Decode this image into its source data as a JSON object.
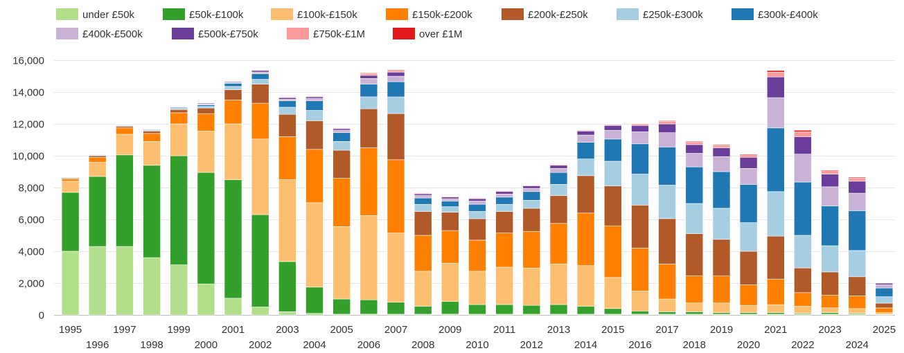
{
  "chart_data": {
    "type": "bar",
    "stacked": true,
    "title": "",
    "xlabel": "",
    "ylabel": "",
    "ylim": [
      0,
      16000
    ],
    "yticks": [
      0,
      2000,
      4000,
      6000,
      8000,
      10000,
      12000,
      14000,
      16000
    ],
    "ytick_labels": [
      "0",
      "2,000",
      "4,000",
      "6,000",
      "8,000",
      "10,000",
      "12,000",
      "14,000",
      "16,000"
    ],
    "grid": true,
    "legend_position": "top-left",
    "categories": [
      "1995",
      "1996",
      "1997",
      "1998",
      "1999",
      "2000",
      "2001",
      "2002",
      "2003",
      "2004",
      "2005",
      "2006",
      "2007",
      "2008",
      "2009",
      "2010",
      "2011",
      "2012",
      "2013",
      "2014",
      "2015",
      "2016",
      "2017",
      "2018",
      "2019",
      "2020",
      "2021",
      "2022",
      "2023",
      "2024",
      "2025"
    ],
    "series": [
      {
        "name": "under £50k",
        "color": "#b2df8a",
        "values": [
          4000,
          4300,
          4300,
          3600,
          3150,
          1950,
          1050,
          500,
          200,
          100,
          50,
          50,
          50,
          50,
          50,
          50,
          50,
          50,
          50,
          50,
          50,
          50,
          50,
          50,
          50,
          50,
          50,
          50,
          50,
          50,
          20
        ]
      },
      {
        "name": "£50k-£100k",
        "color": "#33a02c",
        "values": [
          3700,
          4400,
          5750,
          5800,
          6850,
          7000,
          7450,
          5800,
          3150,
          1650,
          950,
          900,
          750,
          500,
          800,
          600,
          600,
          550,
          600,
          500,
          350,
          200,
          150,
          150,
          100,
          100,
          100,
          50,
          100,
          50,
          20
        ]
      },
      {
        "name": "£100k-£150k",
        "color": "#fdbf6f",
        "values": [
          700,
          900,
          1300,
          1500,
          2000,
          2600,
          3500,
          4750,
          5150,
          5300,
          4550,
          5300,
          4350,
          2200,
          2400,
          2100,
          2350,
          2350,
          2550,
          2550,
          1950,
          1250,
          800,
          550,
          600,
          450,
          500,
          450,
          300,
          300,
          100
        ]
      },
      {
        "name": "£150k-£200k",
        "color": "#ff7f00",
        "values": [
          150,
          300,
          400,
          500,
          700,
          1100,
          1500,
          2250,
          2700,
          3350,
          3050,
          4250,
          4600,
          2250,
          2050,
          1950,
          2150,
          2300,
          2550,
          3300,
          3250,
          2700,
          2200,
          1700,
          1700,
          1300,
          1600,
          850,
          800,
          800,
          300
        ]
      },
      {
        "name": "£200k-£250k",
        "color": "#b15928",
        "values": [
          50,
          100,
          100,
          150,
          200,
          350,
          650,
          1200,
          1400,
          1800,
          1750,
          2450,
          2900,
          1500,
          1150,
          1350,
          1350,
          1450,
          1750,
          2350,
          2500,
          2700,
          2850,
          2650,
          2300,
          2100,
          2700,
          1550,
          1450,
          1200,
          300
        ]
      },
      {
        "name": "£250k-£300k",
        "color": "#a6cee3",
        "values": [
          30,
          50,
          50,
          50,
          100,
          100,
          200,
          300,
          450,
          650,
          550,
          750,
          1050,
          450,
          350,
          450,
          450,
          500,
          700,
          1050,
          1550,
          1950,
          2100,
          1900,
          1950,
          1800,
          2800,
          2050,
          1650,
          1650,
          400
        ]
      },
      {
        "name": "£300k-£400k",
        "color": "#1f78b4",
        "values": [
          20,
          30,
          40,
          40,
          50,
          100,
          200,
          350,
          400,
          600,
          550,
          800,
          950,
          400,
          350,
          450,
          450,
          550,
          750,
          1050,
          1400,
          1900,
          2400,
          2300,
          2300,
          2400,
          4000,
          3350,
          2500,
          2500,
          550
        ]
      },
      {
        "name": "£400k-£500k",
        "color": "#cab2d6",
        "values": [
          10,
          20,
          20,
          20,
          30,
          50,
          50,
          100,
          100,
          150,
          150,
          350,
          350,
          150,
          150,
          200,
          200,
          200,
          250,
          450,
          550,
          750,
          900,
          850,
          950,
          1000,
          1900,
          1750,
          1200,
          1100,
          200
        ]
      },
      {
        "name": "£500k-£750k",
        "color": "#6a3d9a",
        "values": [
          10,
          10,
          20,
          20,
          30,
          50,
          50,
          100,
          100,
          100,
          100,
          200,
          250,
          100,
          100,
          150,
          150,
          150,
          200,
          250,
          300,
          400,
          550,
          550,
          550,
          700,
          1300,
          1100,
          800,
          750,
          100
        ]
      },
      {
        "name": "£750k-£1M",
        "color": "#fb9a99",
        "values": [
          10,
          10,
          10,
          10,
          20,
          20,
          30,
          50,
          40,
          50,
          50,
          100,
          100,
          50,
          50,
          50,
          50,
          50,
          50,
          50,
          50,
          100,
          150,
          150,
          150,
          150,
          300,
          300,
          200,
          200,
          30
        ]
      },
      {
        "name": "over £1M",
        "color": "#e31a1c",
        "values": [
          0,
          0,
          0,
          0,
          0,
          0,
          0,
          20,
          10,
          20,
          20,
          50,
          50,
          20,
          20,
          20,
          20,
          20,
          20,
          20,
          30,
          30,
          50,
          50,
          50,
          50,
          100,
          100,
          50,
          50,
          10
        ]
      }
    ]
  }
}
